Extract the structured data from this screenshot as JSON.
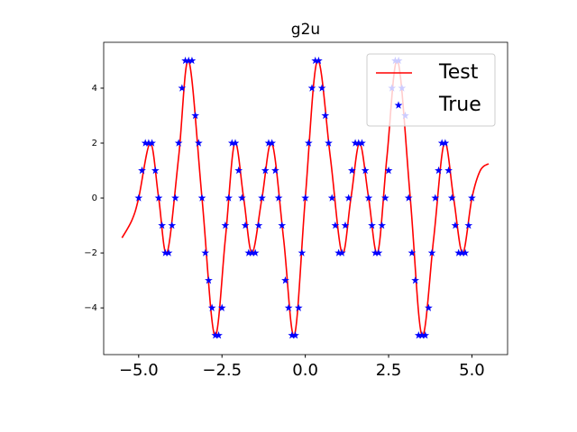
{
  "chart_data": {
    "type": "line",
    "title": "g2u",
    "xlim": [
      -6.05,
      6.07
    ],
    "ylim": [
      -5.7,
      5.67
    ],
    "xticks": [
      {
        "value": -5,
        "label": "−5.0"
      },
      {
        "value": -2.5,
        "label": "−2.5"
      },
      {
        "value": 0,
        "label": "0.0"
      },
      {
        "value": 2.5,
        "label": "2.5"
      },
      {
        "value": 5,
        "label": "5.0"
      }
    ],
    "yticks": [
      {
        "value": -4,
        "label": "−4"
      },
      {
        "value": -2,
        "label": "−2"
      },
      {
        "value": 0,
        "label": "0"
      },
      {
        "value": 2,
        "label": "2"
      },
      {
        "value": 4,
        "label": "4"
      }
    ],
    "legend": "upper right",
    "series": [
      {
        "name": "Test",
        "color": "#ff0000",
        "marker": "line",
        "x": [
          -5.5,
          -5.2,
          -5.0,
          -4.65,
          -4.4,
          -4.15,
          -3.8,
          -3.5,
          -3.1,
          -2.72,
          -2.4,
          -2.12,
          -1.85,
          -1.6,
          -1.3,
          -1.0,
          -0.65,
          -0.33,
          0.0,
          0.36,
          0.75,
          1.1,
          1.37,
          1.63,
          1.9,
          2.17,
          2.45,
          2.77,
          3.15,
          3.5,
          3.85,
          4.17,
          4.45,
          4.72,
          5.0,
          5.25,
          5.5
        ],
        "values": [
          -1.45,
          -0.8,
          0,
          2,
          0,
          -2,
          1.5,
          5,
          0,
          -5,
          -1.5,
          2,
          0,
          -2,
          0,
          2,
          -1.5,
          -5,
          0,
          5,
          1.5,
          -2,
          0,
          2,
          0,
          -2,
          1.5,
          5,
          0,
          -5,
          -1.5,
          2,
          0,
          -2,
          0,
          1.0,
          1.25
        ]
      },
      {
        "name": "True",
        "color": "#0000ff",
        "marker": "star",
        "x": [
          -5.0,
          -4.9,
          -4.8,
          -4.7,
          -4.6,
          -4.5,
          -4.4,
          -4.3,
          -4.2,
          -4.1,
          -4.0,
          -3.9,
          -3.8,
          -3.7,
          -3.6,
          -3.5,
          -3.4,
          -3.3,
          -3.2,
          -3.1,
          -3.0,
          -2.9,
          -2.8,
          -2.7,
          -2.6,
          -2.5,
          -2.4,
          -2.3,
          -2.2,
          -2.1,
          -2.0,
          -1.9,
          -1.8,
          -1.7,
          -1.6,
          -1.5,
          -1.4,
          -1.3,
          -1.2,
          -1.1,
          -1.0,
          -0.9,
          -0.8,
          -0.7,
          -0.6,
          -0.5,
          -0.4,
          -0.3,
          -0.2,
          -0.1,
          0.0,
          0.1,
          0.2,
          0.3,
          0.4,
          0.5,
          0.6,
          0.7,
          0.8,
          0.9,
          1.0,
          1.1,
          1.2,
          1.3,
          1.4,
          1.5,
          1.6,
          1.7,
          1.8,
          1.9,
          2.0,
          2.1,
          2.2,
          2.3,
          2.4,
          2.5,
          2.6,
          2.7,
          2.8,
          2.9,
          3.0,
          3.1,
          3.2,
          3.3,
          3.4,
          3.5,
          3.6,
          3.7,
          3.8,
          3.9,
          4.0,
          4.1,
          4.2,
          4.3,
          4.4,
          4.5,
          4.6,
          4.7,
          4.8,
          4.9,
          5.0
        ],
        "values": [
          0,
          1,
          2,
          2,
          2,
          1,
          0,
          -1,
          -2,
          -2,
          -1,
          0,
          2,
          4,
          5,
          5,
          5,
          3,
          2,
          0,
          -2,
          -3,
          -4,
          -5,
          -5,
          -4,
          -1,
          0,
          2,
          2,
          1,
          0,
          -1,
          -2,
          -2,
          -2,
          -1,
          0,
          1,
          2,
          2,
          1,
          0,
          -1,
          -3,
          -4,
          -5,
          -5,
          -4,
          -2,
          0,
          2,
          4,
          5,
          5,
          4,
          3,
          2,
          0,
          -1,
          -2,
          -2,
          -1,
          0,
          1,
          2,
          2,
          2,
          1,
          0,
          -1,
          -2,
          -2,
          -1,
          0,
          1,
          4,
          5,
          5,
          4,
          3,
          0,
          -2,
          -3,
          -5,
          -5,
          -5,
          -4,
          -2,
          0,
          1,
          2,
          2,
          1,
          0,
          -1,
          -2,
          -2,
          -2,
          -1,
          0
        ]
      }
    ]
  }
}
